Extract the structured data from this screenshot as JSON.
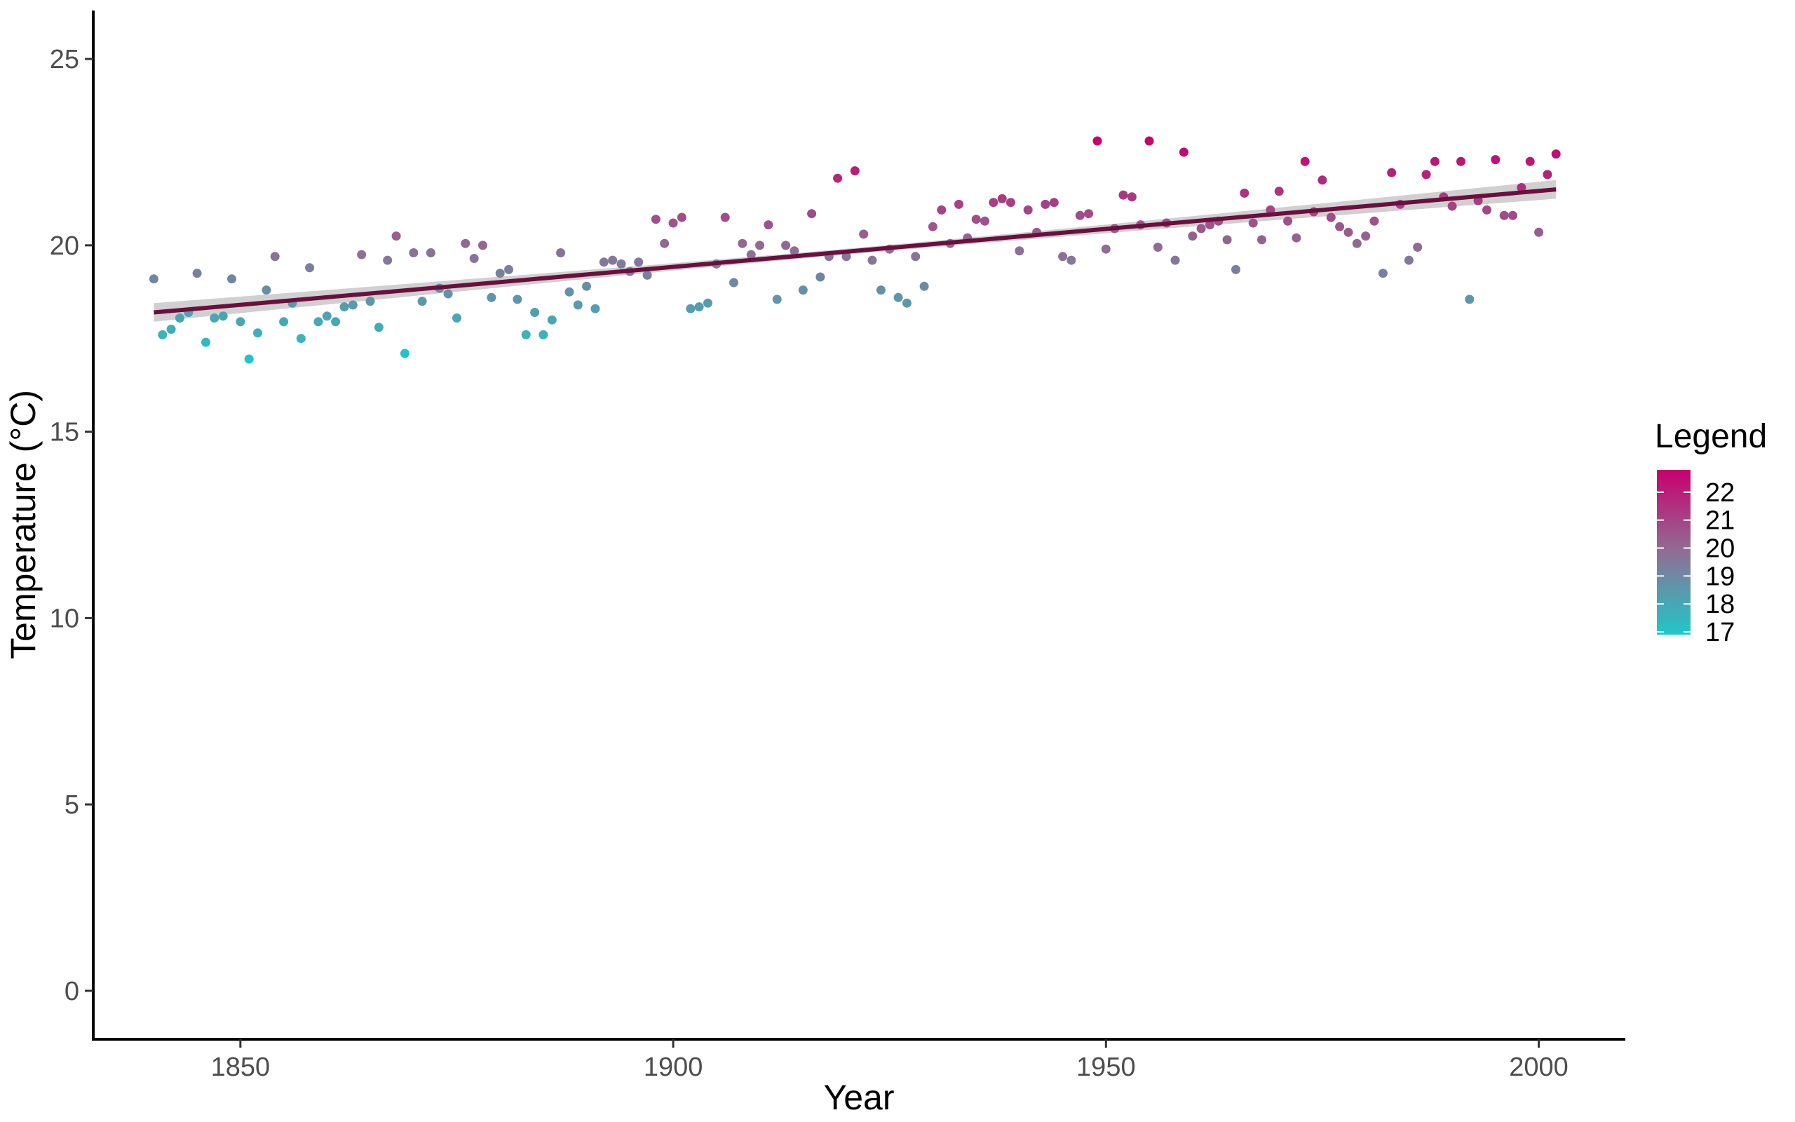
{
  "chart_data": {
    "type": "scatter",
    "title": "",
    "xlabel": "Year",
    "ylabel": "Temperature (°C)",
    "xlim": [
      1833,
      2010
    ],
    "ylim": [
      -1.3,
      26.3
    ],
    "x_ticks": [
      1850,
      1900,
      1950,
      2000
    ],
    "y_ticks": [
      0,
      5,
      10,
      15,
      20,
      25
    ],
    "grid": false,
    "legend": {
      "title": "Legend",
      "position": "right",
      "type": "colorbar",
      "range": [
        16.9,
        22.8
      ],
      "labels": [
        22,
        21,
        20,
        19,
        18,
        17
      ],
      "low_color": "#1ec8c8",
      "mid_color": "#8e6f95",
      "high_color": "#c8006e"
    },
    "trend_line": {
      "x_start": 1840,
      "y_start": 18.2,
      "x_end": 2002,
      "y_end": 21.5,
      "color": "#6b0f3e",
      "ci_color": "#c8c8c8",
      "ci_halfwidth_ends": 0.25,
      "ci_halfwidth_mid": 0.08
    },
    "points": [
      [
        1840,
        19.1
      ],
      [
        1841,
        17.6
      ],
      [
        1842,
        17.75
      ],
      [
        1843,
        18.05
      ],
      [
        1844,
        18.2
      ],
      [
        1845,
        19.25
      ],
      [
        1846,
        17.4
      ],
      [
        1847,
        18.05
      ],
      [
        1848,
        18.1
      ],
      [
        1849,
        19.1
      ],
      [
        1850,
        17.95
      ],
      [
        1851,
        16.95
      ],
      [
        1852,
        17.65
      ],
      [
        1853,
        18.8
      ],
      [
        1854,
        19.7
      ],
      [
        1855,
        17.95
      ],
      [
        1856,
        18.45
      ],
      [
        1857,
        17.5
      ],
      [
        1858,
        19.4
      ],
      [
        1859,
        17.95
      ],
      [
        1860,
        18.1
      ],
      [
        1861,
        17.95
      ],
      [
        1862,
        18.35
      ],
      [
        1863,
        18.4
      ],
      [
        1864,
        19.75
      ],
      [
        1865,
        18.5
      ],
      [
        1866,
        17.8
      ],
      [
        1867,
        19.6
      ],
      [
        1868,
        20.25
      ],
      [
        1869,
        17.1
      ],
      [
        1870,
        19.8
      ],
      [
        1871,
        18.5
      ],
      [
        1872,
        19.8
      ],
      [
        1873,
        18.85
      ],
      [
        1874,
        18.7
      ],
      [
        1875,
        18.05
      ],
      [
        1876,
        20.05
      ],
      [
        1877,
        19.65
      ],
      [
        1878,
        20.0
      ],
      [
        1879,
        18.6
      ],
      [
        1880,
        19.25
      ],
      [
        1881,
        19.35
      ],
      [
        1882,
        18.55
      ],
      [
        1883,
        17.6
      ],
      [
        1884,
        18.2
      ],
      [
        1885,
        17.6
      ],
      [
        1886,
        18.0
      ],
      [
        1887,
        19.8
      ],
      [
        1888,
        18.75
      ],
      [
        1889,
        18.4
      ],
      [
        1890,
        18.9
      ],
      [
        1891,
        18.3
      ],
      [
        1892,
        19.55
      ],
      [
        1893,
        19.6
      ],
      [
        1894,
        19.5
      ],
      [
        1895,
        19.3
      ],
      [
        1896,
        19.55
      ],
      [
        1897,
        19.2
      ],
      [
        1898,
        20.7
      ],
      [
        1899,
        20.05
      ],
      [
        1900,
        20.6
      ],
      [
        1901,
        20.75
      ],
      [
        1902,
        18.3
      ],
      [
        1903,
        18.35
      ],
      [
        1904,
        18.45
      ],
      [
        1905,
        19.5
      ],
      [
        1906,
        20.75
      ],
      [
        1907,
        19.0
      ],
      [
        1908,
        20.05
      ],
      [
        1909,
        19.75
      ],
      [
        1910,
        20.0
      ],
      [
        1911,
        20.55
      ],
      [
        1912,
        18.55
      ],
      [
        1913,
        20.0
      ],
      [
        1914,
        19.85
      ],
      [
        1915,
        18.8
      ],
      [
        1916,
        20.85
      ],
      [
        1917,
        19.15
      ],
      [
        1918,
        19.7
      ],
      [
        1919,
        21.8
      ],
      [
        1920,
        19.7
      ],
      [
        1921,
        22.0
      ],
      [
        1922,
        20.3
      ],
      [
        1923,
        19.6
      ],
      [
        1924,
        18.8
      ],
      [
        1925,
        19.9
      ],
      [
        1926,
        18.6
      ],
      [
        1927,
        18.45
      ],
      [
        1928,
        19.7
      ],
      [
        1929,
        18.9
      ],
      [
        1930,
        20.5
      ],
      [
        1931,
        20.95
      ],
      [
        1932,
        20.05
      ],
      [
        1933,
        21.1
      ],
      [
        1934,
        20.2
      ],
      [
        1935,
        20.7
      ],
      [
        1936,
        20.65
      ],
      [
        1937,
        21.15
      ],
      [
        1938,
        21.25
      ],
      [
        1939,
        21.15
      ],
      [
        1940,
        19.85
      ],
      [
        1941,
        20.95
      ],
      [
        1942,
        20.35
      ],
      [
        1943,
        21.1
      ],
      [
        1944,
        21.15
      ],
      [
        1945,
        19.7
      ],
      [
        1946,
        19.6
      ],
      [
        1947,
        20.8
      ],
      [
        1948,
        20.85
      ],
      [
        1949,
        22.8
      ],
      [
        1950,
        19.9
      ],
      [
        1951,
        20.45
      ],
      [
        1952,
        21.35
      ],
      [
        1953,
        21.3
      ],
      [
        1954,
        20.55
      ],
      [
        1955,
        22.8
      ],
      [
        1956,
        19.95
      ],
      [
        1957,
        20.6
      ],
      [
        1958,
        19.6
      ],
      [
        1959,
        22.5
      ],
      [
        1960,
        20.25
      ],
      [
        1961,
        20.45
      ],
      [
        1962,
        20.55
      ],
      [
        1963,
        20.65
      ],
      [
        1964,
        20.15
      ],
      [
        1965,
        19.35
      ],
      [
        1966,
        21.4
      ],
      [
        1967,
        20.6
      ],
      [
        1968,
        20.15
      ],
      [
        1969,
        20.95
      ],
      [
        1970,
        21.45
      ],
      [
        1971,
        20.65
      ],
      [
        1972,
        20.2
      ],
      [
        1973,
        22.25
      ],
      [
        1974,
        20.9
      ],
      [
        1975,
        21.75
      ],
      [
        1976,
        20.75
      ],
      [
        1977,
        20.5
      ],
      [
        1978,
        20.35
      ],
      [
        1979,
        20.05
      ],
      [
        1980,
        20.25
      ],
      [
        1981,
        20.65
      ],
      [
        1982,
        19.25
      ],
      [
        1983,
        21.95
      ],
      [
        1984,
        21.1
      ],
      [
        1985,
        19.6
      ],
      [
        1986,
        19.95
      ],
      [
        1987,
        21.9
      ],
      [
        1988,
        22.25
      ],
      [
        1989,
        21.3
      ],
      [
        1990,
        21.05
      ],
      [
        1991,
        22.25
      ],
      [
        1992,
        18.55
      ],
      [
        1993,
        21.2
      ],
      [
        1994,
        20.95
      ],
      [
        1995,
        22.3
      ],
      [
        1996,
        20.8
      ],
      [
        1997,
        20.8
      ],
      [
        1998,
        21.55
      ],
      [
        1999,
        22.25
      ],
      [
        2000,
        20.35
      ],
      [
        2001,
        21.9
      ],
      [
        2002,
        22.45
      ]
    ]
  }
}
